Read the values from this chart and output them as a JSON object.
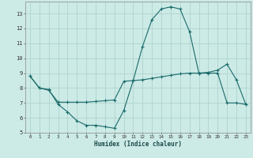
{
  "xlabel": "Humidex (Indice chaleur)",
  "bg_color": "#cceae6",
  "grid_color": "#afd4cf",
  "line_color": "#1a6b6b",
  "spine_color": "#888888",
  "xlim": [
    -0.5,
    23.5
  ],
  "ylim": [
    5.0,
    13.8
  ],
  "yticks": [
    5,
    6,
    7,
    8,
    9,
    10,
    11,
    12,
    13
  ],
  "xticks": [
    0,
    1,
    2,
    3,
    4,
    5,
    6,
    7,
    8,
    9,
    10,
    11,
    12,
    13,
    14,
    15,
    16,
    17,
    18,
    19,
    20,
    21,
    22,
    23
  ],
  "line1_x": [
    0,
    1,
    2,
    3,
    4,
    5,
    6,
    7,
    8,
    9,
    10,
    11,
    12,
    13,
    14,
    15,
    16,
    17,
    18,
    19,
    20,
    21,
    22,
    23
  ],
  "line1_y": [
    8.8,
    8.0,
    7.9,
    6.9,
    6.4,
    5.8,
    5.5,
    5.5,
    5.4,
    5.3,
    6.5,
    8.5,
    10.8,
    12.6,
    13.3,
    13.45,
    13.3,
    11.8,
    9.0,
    9.05,
    9.2,
    9.6,
    8.55,
    6.9
  ],
  "line2_x": [
    0,
    1,
    2,
    3,
    4,
    5,
    6,
    7,
    8,
    9,
    10,
    11,
    12,
    13,
    14,
    15,
    16,
    17,
    18,
    19,
    20,
    21,
    22,
    23
  ],
  "line2_y": [
    8.8,
    8.0,
    7.85,
    7.05,
    7.05,
    7.05,
    7.05,
    7.1,
    7.15,
    7.2,
    8.45,
    8.5,
    8.55,
    8.65,
    8.75,
    8.85,
    8.95,
    9.0,
    9.0,
    9.0,
    9.0,
    7.0,
    7.0,
    6.9
  ]
}
